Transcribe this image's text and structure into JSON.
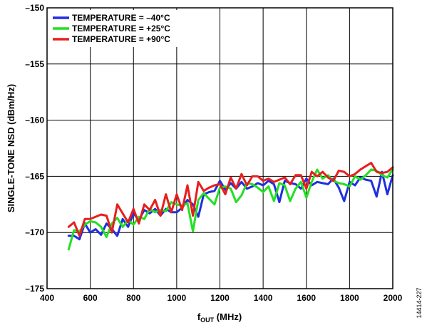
{
  "chart_data": {
    "type": "line",
    "xlabel": {
      "main": "f",
      "sub": "OUT",
      "unit": " (MHz)"
    },
    "ylabel": "SINGLE-TONE NSD (dBm/Hz)",
    "xlim": [
      400,
      2000
    ],
    "ylim": [
      -175,
      -150
    ],
    "xticks": [
      400,
      600,
      800,
      1000,
      1200,
      1400,
      1600,
      1800,
      2000
    ],
    "yticks": [
      -150,
      -155,
      -160,
      -165,
      -170,
      -175
    ],
    "ytick_labels": [
      "–150",
      "–155",
      "–160",
      "–165",
      "–170",
      "–175"
    ],
    "grid": true,
    "legend_position": "top-left",
    "figure_id": "14414-227",
    "x": [
      500,
      525,
      550,
      575,
      600,
      625,
      650,
      675,
      700,
      725,
      750,
      775,
      800,
      825,
      850,
      875,
      900,
      925,
      950,
      975,
      1000,
      1025,
      1050,
      1075,
      1100,
      1125,
      1150,
      1175,
      1200,
      1225,
      1250,
      1275,
      1300,
      1325,
      1350,
      1375,
      1400,
      1425,
      1450,
      1475,
      1500,
      1525,
      1550,
      1575,
      1600,
      1625,
      1650,
      1675,
      1700,
      1725,
      1750,
      1775,
      1800,
      1825,
      1850,
      1875,
      1900,
      1925,
      1950,
      1975,
      2000
    ],
    "series": [
      {
        "name": "TEMPERATURE = –40°C",
        "color": "#1f2fe0",
        "values": [
          -170.3,
          -170.3,
          -170.6,
          -169.2,
          -170.0,
          -169.7,
          -170.2,
          -169.2,
          -169.7,
          -170.3,
          -168.8,
          -169.5,
          -168.3,
          -168.9,
          -168.0,
          -168.3,
          -167.9,
          -168.5,
          -167.9,
          -168.2,
          -168.2,
          -167.8,
          -167.1,
          -167.5,
          -168.6,
          -166.6,
          -166.4,
          -166.3,
          -165.4,
          -166.2,
          -165.6,
          -166.1,
          -165.5,
          -166.1,
          -165.9,
          -165.6,
          -165.8,
          -165.4,
          -165.7,
          -167.3,
          -165.4,
          -165.6,
          -165.7,
          -166.1,
          -165.2,
          -165.8,
          -165.5,
          -165.6,
          -165.7,
          -165.2,
          -166.0,
          -167.2,
          -165.5,
          -165.8,
          -165.1,
          -165.3,
          -165.4,
          -166.8,
          -164.6,
          -166.6,
          -164.9
        ]
      },
      {
        "name": "TEMPERATURE = +25°C",
        "color": "#22e022",
        "values": [
          -171.5,
          -169.8,
          -169.9,
          -169.3,
          -169.0,
          -169.1,
          -169.5,
          -170.4,
          -169.2,
          -168.7,
          -169.5,
          -168.9,
          -169.3,
          -168.6,
          -168.8,
          -167.9,
          -168.2,
          -168.0,
          -168.1,
          -167.3,
          -167.5,
          -167.6,
          -167.4,
          -169.9,
          -167.1,
          -166.5,
          -167.0,
          -167.5,
          -166.0,
          -165.9,
          -166.1,
          -167.3,
          -166.7,
          -165.6,
          -165.7,
          -166.0,
          -166.4,
          -165.9,
          -167.2,
          -165.6,
          -165.8,
          -167.2,
          -166.1,
          -165.5,
          -166.9,
          -165.5,
          -164.4,
          -165.2,
          -164.9,
          -165.4,
          -165.6,
          -165.7,
          -165.9,
          -165.0,
          -165.3,
          -164.9,
          -164.4,
          -164.5,
          -164.9,
          -165.1,
          -164.4
        ]
      },
      {
        "name": "TEMPERATURE = +90°C",
        "color": "#e81e1e",
        "values": [
          -169.5,
          -169.1,
          -170.3,
          -168.8,
          -168.8,
          -168.6,
          -168.4,
          -168.5,
          -170.0,
          -167.5,
          -168.3,
          -169.1,
          -167.9,
          -169.2,
          -167.5,
          -168.0,
          -167.1,
          -168.5,
          -166.6,
          -168.2,
          -166.6,
          -168.0,
          -165.8,
          -168.5,
          -165.5,
          -166.3,
          -166.0,
          -165.8,
          -165.7,
          -166.6,
          -165.1,
          -166.1,
          -164.8,
          -165.8,
          -165.0,
          -165.0,
          -165.4,
          -165.2,
          -165.5,
          -165.3,
          -165.1,
          -165.7,
          -164.9,
          -164.9,
          -166.1,
          -164.6,
          -165.0,
          -164.6,
          -165.1,
          -165.4,
          -164.5,
          -164.6,
          -165.0,
          -164.8,
          -164.4,
          -164.1,
          -163.8,
          -164.6,
          -164.7,
          -164.6,
          -164.2
        ]
      }
    ]
  }
}
